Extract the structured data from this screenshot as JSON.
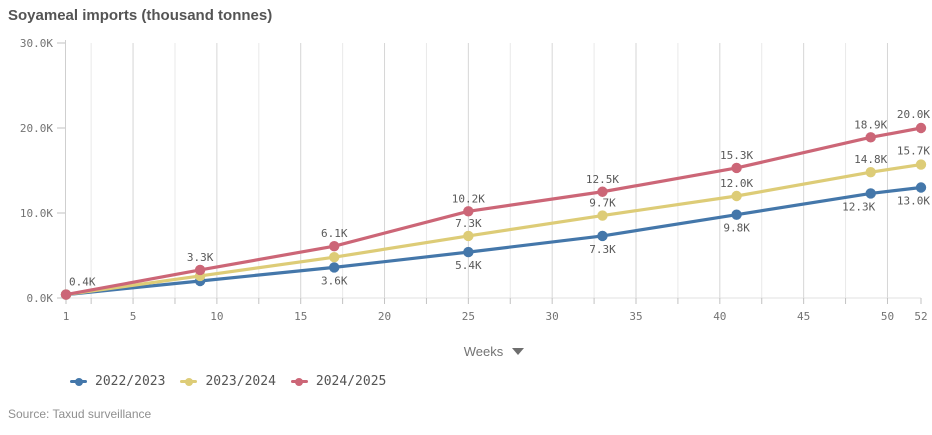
{
  "title": "Soyameal imports (thousand tonnes)",
  "source": "Source: Taxud surveillance",
  "x_axis_selector": {
    "label": "Weeks",
    "icon": "chevron-down"
  },
  "chart_data": {
    "type": "line",
    "title": "Soyameal imports (thousand tonnes)",
    "xlabel": "Weeks",
    "ylabel": "",
    "units": "thousand tonnes (K)",
    "x": [
      1,
      9,
      17,
      25,
      33,
      41,
      49,
      52
    ],
    "x_ticks": [
      1,
      5,
      10,
      15,
      20,
      25,
      30,
      35,
      40,
      45,
      50,
      52
    ],
    "xlim": [
      1,
      52
    ],
    "ylim_k": [
      0,
      30
    ],
    "y_ticks": [
      {
        "value": 0,
        "label": "0.0K"
      },
      {
        "value": 10,
        "label": "10.0K"
      },
      {
        "value": 20,
        "label": "20.0K"
      },
      {
        "value": 30,
        "label": "30.0K"
      }
    ],
    "grid": "vertical-only",
    "grid_minor_step_weeks": 2.5,
    "legend_position": "bottom-left",
    "series": [
      {
        "name": "2022/2023",
        "color": "#4477aa",
        "label_side": "below",
        "values_k": [
          0.4,
          2.0,
          3.6,
          5.4,
          7.3,
          9.8,
          12.3,
          13.0
        ],
        "point_labels": [
          "",
          "",
          "3.6K",
          "5.4K",
          "7.3K",
          "9.8K",
          "12.3K",
          "13.0K"
        ]
      },
      {
        "name": "2023/2024",
        "color": "#ddcc77",
        "label_side": "above",
        "values_k": [
          0.4,
          2.6,
          4.8,
          7.3,
          9.7,
          12.0,
          14.8,
          15.7
        ],
        "point_labels": [
          "",
          "",
          "",
          "7.3K",
          "9.7K",
          "12.0K",
          "14.8K",
          "15.7K"
        ]
      },
      {
        "name": "2024/2025",
        "color": "#cc6677",
        "label_side": "above",
        "values_k": [
          0.4,
          3.3,
          6.1,
          10.2,
          12.5,
          15.3,
          18.9,
          20.0
        ],
        "point_labels": [
          "0.4K",
          "3.3K",
          "6.1K",
          "10.2K",
          "12.5K",
          "15.3K",
          "18.9K",
          "20.0K"
        ]
      }
    ]
  }
}
